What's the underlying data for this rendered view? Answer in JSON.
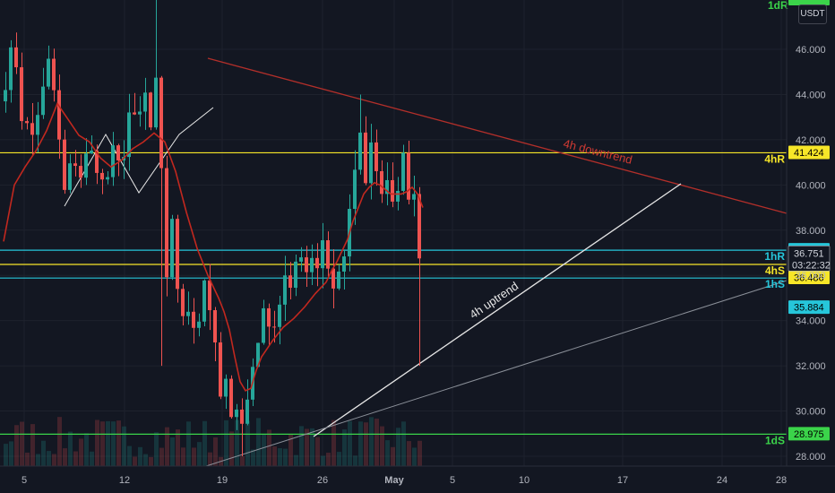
{
  "currency": "USDT",
  "colors": {
    "background": "#131722",
    "grid": "#1e222d",
    "axis_text": "#b2b5be",
    "up": "#26a69a",
    "down": "#ef5350",
    "ma": "#c2281f",
    "level_yellow": "#f7e628",
    "level_cyan": "#26c6da",
    "level_green": "#3bd44a",
    "downtrend_line": "#b22f2a",
    "uptrend_line": "#e6e6e6",
    "long_support_line": "#8a8f98"
  },
  "chart_data": {
    "type": "candlestick",
    "x_axis": {
      "tick_labels": [
        "5",
        "12",
        "19",
        "26",
        "May",
        "5",
        "10",
        "17",
        "24",
        "28"
      ],
      "label": ""
    },
    "y_axis": {
      "tick_labels": [
        "28.000",
        "30.000",
        "32.000",
        "34.000",
        "36.000",
        "38.000",
        "40.000",
        "42.000",
        "44.000",
        "46.000"
      ],
      "range": [
        27.6,
        48.2
      ],
      "label": ""
    },
    "levels": [
      {
        "name": "4hR",
        "value": 41.424,
        "badge": "41.424",
        "color": "yellow"
      },
      {
        "name": "1hR",
        "value": 37.116,
        "badge": "37.116",
        "color": "cyan"
      },
      {
        "name": "4hS",
        "value": 36.486,
        "badge": "36.486",
        "color": "yellow"
      },
      {
        "name": "1hS",
        "value": 35.884,
        "badge": "35.884",
        "color": "cyan"
      },
      {
        "name": "1dS",
        "value": 28.975,
        "badge": "28.975",
        "color": "green"
      },
      {
        "name": "1dR",
        "value": null,
        "badge": "",
        "color": "green"
      }
    ],
    "current_price": {
      "value": 36.751,
      "countdown": "03:22:32"
    },
    "annotations": [
      {
        "text": "4h downtrend",
        "kind": "downtrend"
      },
      {
        "text": "4h uptrend",
        "kind": "uptrend"
      }
    ],
    "price_path": [
      [
        0,
        44.5
      ],
      [
        1.5,
        46.5
      ],
      [
        3,
        43.0
      ],
      [
        5,
        42.2
      ],
      [
        7,
        44.2
      ],
      [
        8.3,
        45.8
      ],
      [
        9.5,
        43.0
      ],
      [
        11,
        39.7
      ],
      [
        12.5,
        41.3
      ],
      [
        14,
        40.4
      ],
      [
        15.5,
        41.7
      ],
      [
        17,
        40.8
      ],
      [
        18.5,
        39.8
      ],
      [
        20,
        41.5
      ],
      [
        21.5,
        40.6
      ],
      [
        23,
        43.2
      ],
      [
        24.5,
        42.7
      ],
      [
        26,
        44.0
      ],
      [
        27,
        42.5
      ],
      [
        28,
        44.5
      ],
      [
        28.5,
        44.0
      ],
      [
        29,
        40.5
      ],
      [
        30,
        36.0
      ],
      [
        31,
        38.6
      ],
      [
        32,
        35.2
      ],
      [
        33,
        34.3
      ],
      [
        34,
        34.6
      ],
      [
        35,
        33.8
      ],
      [
        36,
        34.0
      ],
      [
        37,
        35.9
      ],
      [
        38,
        34.2
      ],
      [
        39,
        33.0
      ],
      [
        40,
        30.5
      ],
      [
        41,
        31.2
      ],
      [
        42,
        30.0
      ],
      [
        43,
        30.2
      ],
      [
        44,
        29.4
      ],
      [
        45,
        30.5
      ],
      [
        46,
        32.0
      ],
      [
        47,
        33.2
      ],
      [
        48,
        34.3
      ],
      [
        49,
        34.0
      ],
      [
        50,
        33.8
      ],
      [
        51,
        34.8
      ],
      [
        52,
        35.9
      ],
      [
        53,
        35.2
      ],
      [
        54,
        36.6
      ],
      [
        55,
        37.0
      ],
      [
        56,
        36.2
      ],
      [
        57,
        36.9
      ],
      [
        58,
        36.4
      ],
      [
        59,
        37.6
      ],
      [
        60,
        36.4
      ],
      [
        61,
        35.4
      ],
      [
        62,
        36.1
      ],
      [
        63,
        37.0
      ],
      [
        64,
        38.7
      ],
      [
        65,
        40.7
      ],
      [
        66,
        42.1
      ],
      [
        67,
        40.0
      ],
      [
        68,
        41.8
      ],
      [
        69,
        40.6
      ],
      [
        70,
        39.6
      ],
      [
        71,
        40.1
      ],
      [
        72,
        39.0
      ],
      [
        73,
        39.8
      ],
      [
        74,
        41.3
      ],
      [
        75,
        39.5
      ],
      [
        76,
        36.75
      ]
    ],
    "ma_path": [
      [
        0,
        37.5
      ],
      [
        2,
        40.0
      ],
      [
        4,
        40.8
      ],
      [
        6,
        41.5
      ],
      [
        8,
        42.4
      ],
      [
        10,
        43.6
      ],
      [
        12,
        42.9
      ],
      [
        14,
        42.2
      ],
      [
        16,
        41.9
      ],
      [
        18,
        41.2
      ],
      [
        20,
        40.8
      ],
      [
        22,
        41.1
      ],
      [
        24,
        41.6
      ],
      [
        26,
        41.9
      ],
      [
        28,
        42.3
      ],
      [
        30,
        41.9
      ],
      [
        32,
        40.6
      ],
      [
        34,
        38.8
      ],
      [
        36,
        37.2
      ],
      [
        38,
        36.0
      ],
      [
        40,
        35.0
      ],
      [
        41,
        34.4
      ],
      [
        42,
        33.6
      ],
      [
        43,
        32.4
      ],
      [
        44,
        31.3
      ],
      [
        45,
        30.9
      ],
      [
        46,
        31.0
      ],
      [
        47,
        31.8
      ],
      [
        48,
        32.4
      ],
      [
        50,
        33.1
      ],
      [
        52,
        33.7
      ],
      [
        54,
        34.1
      ],
      [
        56,
        34.6
      ],
      [
        58,
        35.2
      ],
      [
        60,
        35.7
      ],
      [
        61,
        36.2
      ],
      [
        62,
        36.6
      ],
      [
        63,
        37.1
      ],
      [
        64,
        37.6
      ],
      [
        65,
        38.4
      ],
      [
        66,
        39.0
      ],
      [
        67,
        39.6
      ],
      [
        68,
        39.9
      ],
      [
        69,
        40.1
      ],
      [
        70,
        40.0
      ],
      [
        71,
        39.8
      ],
      [
        72,
        39.6
      ],
      [
        73,
        39.6
      ],
      [
        74,
        39.6
      ],
      [
        75,
        39.7
      ],
      [
        76,
        39.9
      ],
      [
        77,
        39.6
      ],
      [
        78,
        39.0
      ]
    ],
    "candles_drawn": 78,
    "volume_shown": true,
    "grid": true
  }
}
